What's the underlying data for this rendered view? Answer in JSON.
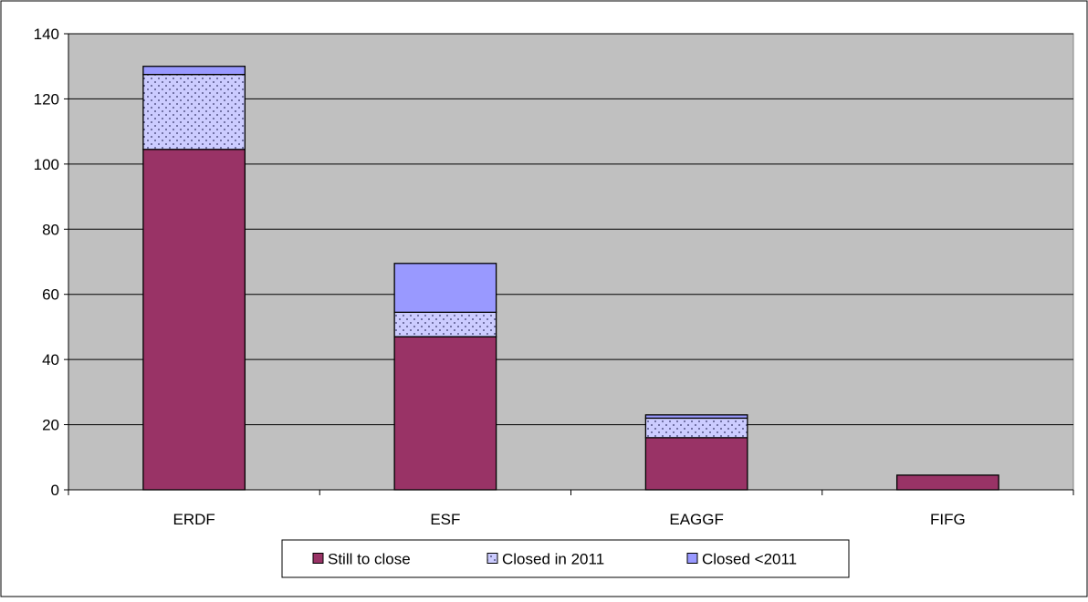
{
  "chart_data": {
    "type": "bar",
    "stacked": true,
    "categories": [
      "ERDF",
      "ESF",
      "EAGGF",
      "FIFG"
    ],
    "series": [
      {
        "name": "Still to close",
        "values": [
          104.5,
          47,
          16,
          4.5
        ],
        "color": "#993366",
        "pattern": "solid"
      },
      {
        "name": "Closed in 2011",
        "values": [
          23,
          7.5,
          6,
          0
        ],
        "color": "#ccccff",
        "pattern": "dotted"
      },
      {
        "name": "Closed <2011",
        "values": [
          2.5,
          15,
          1,
          0
        ],
        "color": "#9999ff",
        "pattern": "solid"
      }
    ],
    "ylim": [
      0,
      140
    ],
    "yticks": [
      0,
      20,
      40,
      60,
      80,
      100,
      120,
      140
    ],
    "grid": true,
    "legend_position": "bottom",
    "plot_background": "#c0c0c0",
    "title": "",
    "xlabel": "",
    "ylabel": ""
  }
}
